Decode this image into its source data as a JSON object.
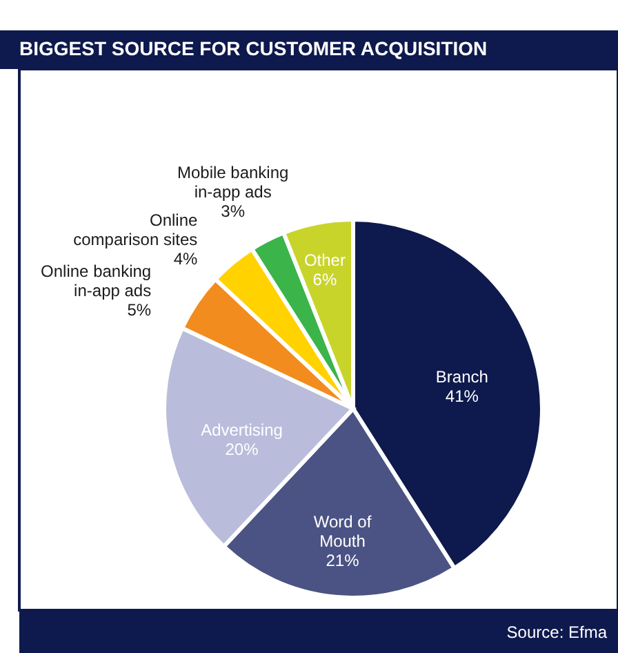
{
  "chart_data": {
    "type": "pie",
    "title": "BIGGEST SOURCE FOR CUSTOMER ACQUISITION",
    "categories": [
      "Branch",
      "Word of\nMouth",
      "Advertising",
      "Online banking\nin-app ads",
      "Online\ncomparison sites",
      "Mobile banking\nin-app ads",
      "Other"
    ],
    "values": [
      41,
      21,
      20,
      5,
      4,
      3,
      6
    ],
    "colors": [
      "#0e1a4d",
      "#4b5384",
      "#b9bddb",
      "#f28c1e",
      "#ffd200",
      "#3bb44a",
      "#c9d42b"
    ],
    "value_labels": [
      "41%",
      "21%",
      "20%",
      "5%",
      "4%",
      "3%",
      "6%"
    ],
    "annotations": [
      "Source: Efma"
    ]
  }
}
